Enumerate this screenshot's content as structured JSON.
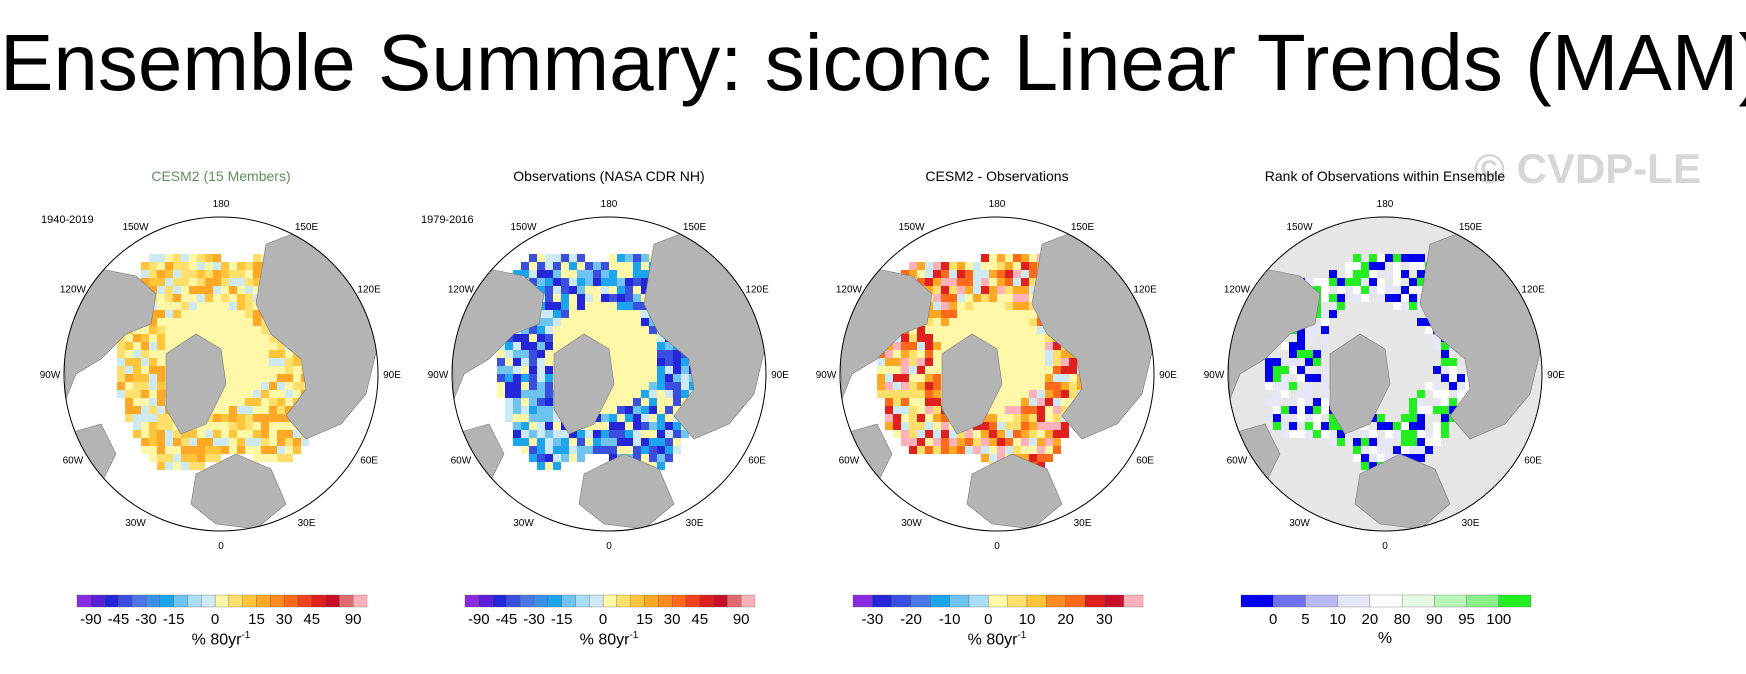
{
  "title": "Ensemble Summary: siconc Linear Trends (MAM)",
  "watermark": "© CVDP-LE",
  "longitude_labels": [
    "180",
    "150E",
    "120E",
    "90E",
    "60E",
    "30E",
    "0",
    "30W",
    "60W",
    "90W",
    "120W",
    "150W"
  ],
  "colors": {
    "land": "#b4b4b4",
    "ocean": "#ffffff",
    "title_green": "#5f8f5f",
    "watermark": "#d6d6d6"
  },
  "panels": [
    {
      "title": "CESM2 (15 Members)",
      "period": "1940-2019",
      "units": "% 80yr",
      "units_sup": "-1",
      "colorbar": {
        "colors": [
          "#8a2be2",
          "#5a1fd6",
          "#2525d9",
          "#3a4fe0",
          "#4b78e6",
          "#3a8fe8",
          "#1aa5ee",
          "#6fc3f1",
          "#a9ddf5",
          "#cde9f3",
          "#fff7a8",
          "#ffdf6b",
          "#ffc43a",
          "#ffa826",
          "#ff8a1f",
          "#ff6a1a",
          "#f0421c",
          "#e01f1f",
          "#c8102a",
          "#e06a70",
          "#ffb0b8"
        ],
        "tick_labels": [
          "-90",
          "-45",
          "-30",
          "-15",
          "0",
          "15",
          "30",
          "45",
          "90"
        ],
        "tick_index": [
          1,
          3,
          5,
          7,
          10,
          13,
          15,
          17,
          20
        ]
      }
    },
    {
      "title": "Observations (NASA CDR NH)",
      "period": "1979-2016",
      "units": "% 80yr",
      "units_sup": "-1",
      "colorbar": {
        "colors": [
          "#8a2be2",
          "#5a1fd6",
          "#2525d9",
          "#3a4fe0",
          "#4b78e6",
          "#3a8fe8",
          "#1aa5ee",
          "#6fc3f1",
          "#a9ddf5",
          "#cde9f3",
          "#fff7a8",
          "#ffdf6b",
          "#ffc43a",
          "#ffa826",
          "#ff8a1f",
          "#ff6a1a",
          "#f0421c",
          "#e01f1f",
          "#c8102a",
          "#e06a70",
          "#ffb0b8"
        ],
        "tick_labels": [
          "-90",
          "-45",
          "-30",
          "-15",
          "0",
          "15",
          "30",
          "45",
          "90"
        ],
        "tick_index": [
          1,
          3,
          5,
          7,
          10,
          13,
          15,
          17,
          20
        ]
      }
    },
    {
      "title": "CESM2 - Observations",
      "period": "",
      "units": "% 80yr",
      "units_sup": "-1",
      "colorbar": {
        "colors": [
          "#8a2be2",
          "#2525d9",
          "#3a4fe0",
          "#4b78e6",
          "#1aa5ee",
          "#6fc3f1",
          "#a9ddf5",
          "#fff7a8",
          "#ffdf6b",
          "#ffc43a",
          "#ff8a1f",
          "#ff6a1a",
          "#e01f1f",
          "#c8102a",
          "#ffb0b8"
        ],
        "tick_labels": [
          "-30",
          "-20",
          "-10",
          "0",
          "10",
          "20",
          "30"
        ],
        "tick_index": [
          1,
          3,
          5,
          7,
          9,
          11,
          13
        ]
      }
    },
    {
      "title": "Rank of Observations within Ensemble",
      "period": "",
      "units": "%",
      "units_sup": "",
      "colorbar": {
        "colors": [
          "#0000ee",
          "#7070f0",
          "#b8b8f5",
          "#e6e6fa",
          "#ffffff",
          "#e6fae6",
          "#b8f5b8",
          "#8aee8a",
          "#22ee22"
        ],
        "tick_labels": [
          "0",
          "5",
          "10",
          "20",
          "80",
          "90",
          "95",
          "100"
        ],
        "tick_index": [
          1,
          2,
          3,
          4,
          5,
          6,
          7,
          8
        ]
      }
    }
  ]
}
